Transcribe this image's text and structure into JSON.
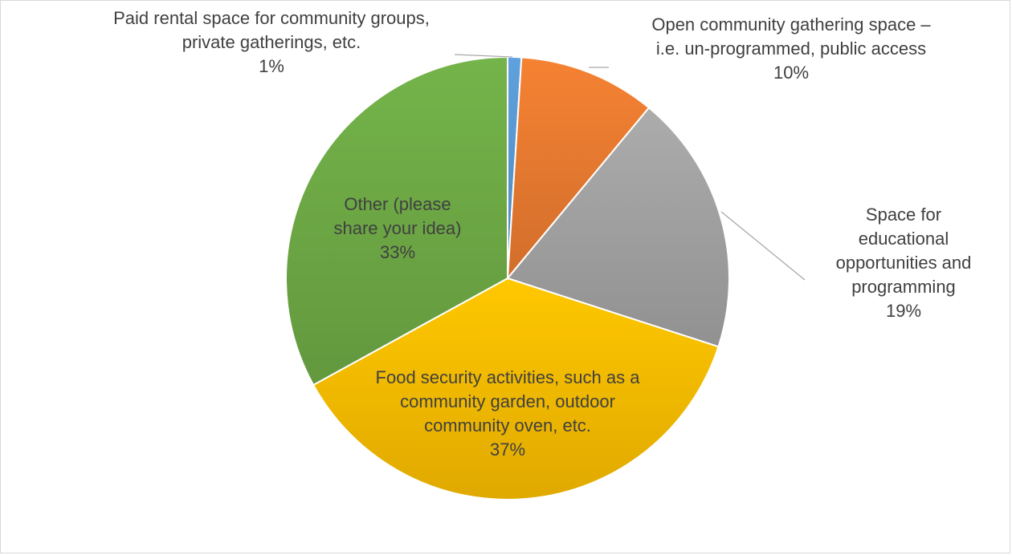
{
  "chart_data": {
    "type": "pie",
    "title": "",
    "slices": [
      {
        "label": [
          "Paid rental space for community groups,",
          "private gatherings, etc."
        ],
        "value": 1,
        "value_label": "1%",
        "color": "#5B9BD5"
      },
      {
        "label": [
          "Open community gathering space –",
          "i.e. un-programmed, public access"
        ],
        "value": 10,
        "value_label": "10%",
        "color": "#ED7D31"
      },
      {
        "label": [
          "Space for",
          "educational",
          "opportunities and",
          "programming"
        ],
        "value": 19,
        "value_label": "19%",
        "color": "#A5A5A5"
      },
      {
        "label": [
          "Food security activities, such as a",
          "community garden, outdoor",
          "community oven, etc."
        ],
        "value": 37,
        "value_label": "37%",
        "color": "#FFC000"
      },
      {
        "label": [
          "Other (please",
          "share your idea)"
        ],
        "value": 33,
        "value_label": "33%",
        "color": "#70AD47"
      }
    ]
  }
}
